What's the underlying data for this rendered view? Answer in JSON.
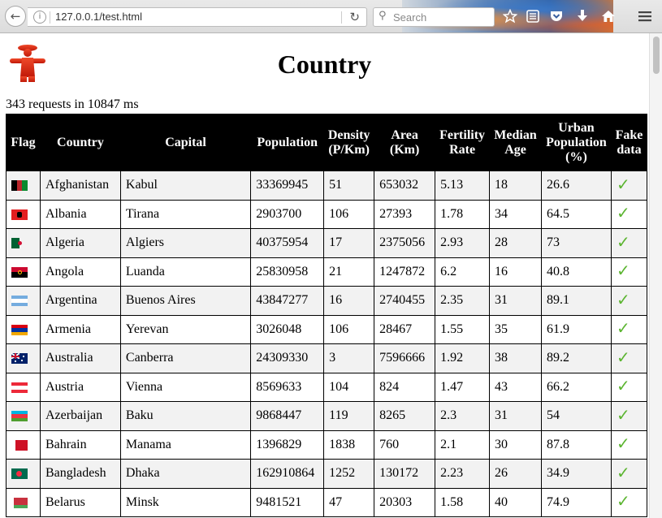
{
  "browser": {
    "url": "127.0.0.1/test.html",
    "search_placeholder": "Search"
  },
  "page": {
    "title": "Country",
    "stats": "343 requests in 10847 ms"
  },
  "table": {
    "headers": [
      "Flag",
      "Country",
      "Capital",
      "Population",
      "Density (P/Km)",
      "Area (Km)",
      "Fertility Rate",
      "Median Age",
      "Urban Population (%)",
      "Fake data"
    ],
    "rows": [
      {
        "flag": "af",
        "country": "Afghanistan",
        "capital": "Kabul",
        "population": "33369945",
        "density": "51",
        "area": "653032",
        "fertility": "5.13",
        "median_age": "18",
        "urban": "26.6",
        "fake": "✓"
      },
      {
        "flag": "al",
        "country": "Albania",
        "capital": "Tirana",
        "population": "2903700",
        "density": "106",
        "area": "27393",
        "fertility": "1.78",
        "median_age": "34",
        "urban": "64.5",
        "fake": "✓"
      },
      {
        "flag": "dz",
        "country": "Algeria",
        "capital": "Algiers",
        "population": "40375954",
        "density": "17",
        "area": "2375056",
        "fertility": "2.93",
        "median_age": "28",
        "urban": "73",
        "fake": "✓"
      },
      {
        "flag": "ao",
        "country": "Angola",
        "capital": "Luanda",
        "population": "25830958",
        "density": "21",
        "area": "1247872",
        "fertility": "6.2",
        "median_age": "16",
        "urban": "40.8",
        "fake": "✓"
      },
      {
        "flag": "ar",
        "country": "Argentina",
        "capital": "Buenos Aires",
        "population": "43847277",
        "density": "16",
        "area": "2740455",
        "fertility": "2.35",
        "median_age": "31",
        "urban": "89.1",
        "fake": "✓"
      },
      {
        "flag": "am",
        "country": "Armenia",
        "capital": "Yerevan",
        "population": "3026048",
        "density": "106",
        "area": "28467",
        "fertility": "1.55",
        "median_age": "35",
        "urban": "61.9",
        "fake": "✓"
      },
      {
        "flag": "au",
        "country": "Australia",
        "capital": "Canberra",
        "population": "24309330",
        "density": "3",
        "area": "7596666",
        "fertility": "1.92",
        "median_age": "38",
        "urban": "89.2",
        "fake": "✓"
      },
      {
        "flag": "at",
        "country": "Austria",
        "capital": "Vienna",
        "population": "8569633",
        "density": "104",
        "area": "824",
        "fertility": "1.47",
        "median_age": "43",
        "urban": "66.2",
        "fake": "✓"
      },
      {
        "flag": "az",
        "country": "Azerbaijan",
        "capital": "Baku",
        "population": "9868447",
        "density": "119",
        "area": "8265",
        "fertility": "2.3",
        "median_age": "31",
        "urban": "54",
        "fake": "✓"
      },
      {
        "flag": "bh",
        "country": "Bahrain",
        "capital": "Manama",
        "population": "1396829",
        "density": "1838",
        "area": "760",
        "fertility": "2.1",
        "median_age": "30",
        "urban": "87.8",
        "fake": "✓"
      },
      {
        "flag": "bd",
        "country": "Bangladesh",
        "capital": "Dhaka",
        "population": "162910864",
        "density": "1252",
        "area": "130172",
        "fertility": "2.23",
        "median_age": "26",
        "urban": "34.9",
        "fake": "✓"
      },
      {
        "flag": "by",
        "country": "Belarus",
        "capital": "Minsk",
        "population": "9481521",
        "density": "47",
        "area": "20303",
        "fertility": "1.58",
        "median_age": "40",
        "urban": "74.9",
        "fake": "✓"
      }
    ]
  }
}
